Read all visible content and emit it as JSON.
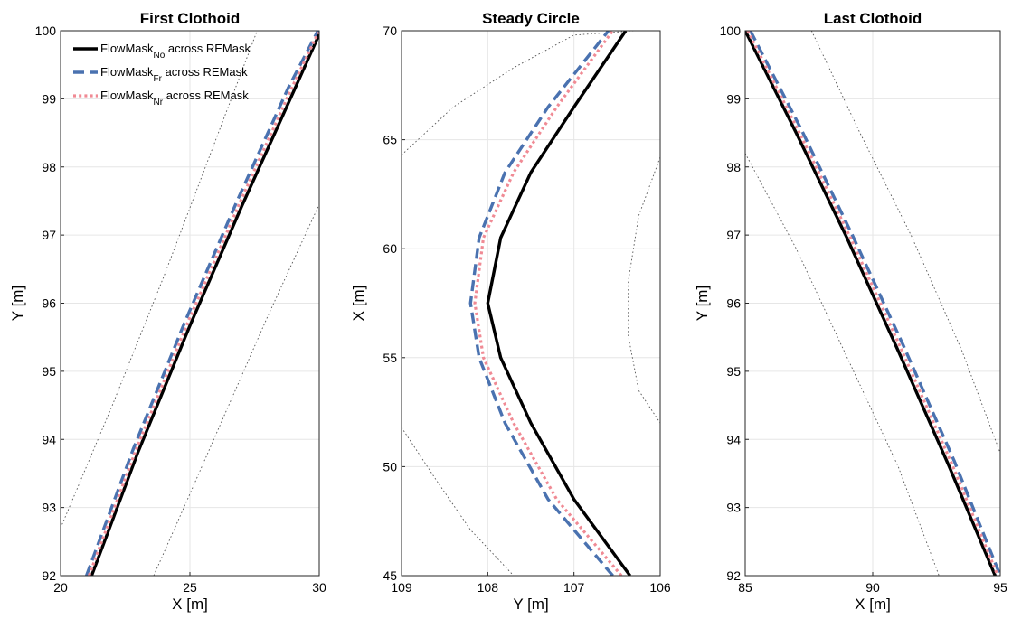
{
  "colors": {
    "flowmask_no": "#000000",
    "flowmask_fr": "#4a72b0",
    "flowmask_nr": "#f08a94",
    "boundary": "#555555",
    "grid": "#e6e6e6"
  },
  "legend": {
    "placement": "top-left",
    "entries": [
      {
        "series": "flowmask_no",
        "main": "FlowMask",
        "sub": "No",
        "suffix": " across REMask"
      },
      {
        "series": "flowmask_fr",
        "main": "FlowMask",
        "sub": "Fr",
        "suffix": " across REMask"
      },
      {
        "series": "flowmask_nr",
        "main": "FlowMask",
        "sub": "Nr",
        "suffix": " across REMask"
      }
    ]
  },
  "chart_data": [
    {
      "type": "line",
      "title": "First Clothoid",
      "xlabel": "X [m]",
      "ylabel": "Y [m]",
      "xlim": [
        20,
        30
      ],
      "ylim": [
        92,
        100
      ],
      "x_reversed": false,
      "xticks": [
        20,
        25,
        30
      ],
      "xtick_labels": [
        "20",
        "25",
        "30"
      ],
      "yticks": [
        92,
        93,
        94,
        95,
        96,
        97,
        98,
        99,
        100
      ],
      "ytick_labels": [
        "92",
        "93",
        "94",
        "95",
        "96",
        "97",
        "98",
        "99",
        "100"
      ],
      "grid": true,
      "series": [
        {
          "key": "flowmask_no",
          "style": "solid",
          "x": [
            21.2,
            23.0,
            25.0,
            27.0,
            29.0,
            30.0
          ],
          "y": [
            92.0,
            93.82,
            95.67,
            97.42,
            99.1,
            99.95
          ]
        },
        {
          "key": "flowmask_fr",
          "style": "dashed",
          "x": [
            21.0,
            22.8,
            24.8,
            26.8,
            28.8,
            29.95
          ],
          "y": [
            92.0,
            93.85,
            95.72,
            97.48,
            99.16,
            100.0
          ]
        },
        {
          "key": "flowmask_nr",
          "style": "dotted",
          "x": [
            21.1,
            22.9,
            24.9,
            26.9,
            28.9,
            29.97
          ],
          "y": [
            92.0,
            93.83,
            95.7,
            97.45,
            99.13,
            99.98
          ]
        },
        {
          "key": "boundary",
          "style": "boundary",
          "x": [
            20.0,
            22.0,
            24.0,
            26.0,
            27.6
          ],
          "y": [
            92.7,
            94.5,
            96.4,
            98.4,
            100.0
          ]
        },
        {
          "key": "boundary",
          "style": "boundary",
          "x": [
            23.6,
            25.0,
            26.5,
            28.0,
            30.0
          ],
          "y": [
            92.0,
            93.2,
            94.5,
            95.8,
            97.45
          ]
        }
      ]
    },
    {
      "type": "line",
      "title": "Steady Circle",
      "xlabel": "Y [m]",
      "ylabel": "X [m]",
      "xlim": [
        109,
        106
      ],
      "ylim": [
        45,
        70
      ],
      "x_reversed": true,
      "xticks": [
        109,
        108,
        107,
        106
      ],
      "xtick_labels": [
        "109",
        "108",
        "107",
        "106"
      ],
      "yticks": [
        45,
        50,
        55,
        60,
        65,
        70
      ],
      "ytick_labels": [
        "45",
        "50",
        "55",
        "60",
        "65",
        "70"
      ],
      "grid": true,
      "series": [
        {
          "key": "flowmask_no",
          "style": "solid",
          "x": [
            106.35,
            107.0,
            107.5,
            107.85,
            108.0,
            107.85,
            107.5,
            107.0,
            106.4
          ],
          "y": [
            45.0,
            48.5,
            52.0,
            55.0,
            57.5,
            60.5,
            63.5,
            66.5,
            70.0
          ]
        },
        {
          "key": "flowmask_fr",
          "style": "dashed",
          "x": [
            106.55,
            107.3,
            107.8,
            108.1,
            108.2,
            108.1,
            107.8,
            107.3,
            106.6
          ],
          "y": [
            45.0,
            48.5,
            52.0,
            55.0,
            57.5,
            60.5,
            63.5,
            66.5,
            70.0
          ]
        },
        {
          "key": "flowmask_nr",
          "style": "dotted",
          "x": [
            106.45,
            107.2,
            107.7,
            108.05,
            108.15,
            108.05,
            107.7,
            107.2,
            106.55
          ],
          "y": [
            45.0,
            48.5,
            52.0,
            55.0,
            57.5,
            60.5,
            63.5,
            66.5,
            70.0
          ]
        },
        {
          "key": "boundary",
          "style": "boundary",
          "x": [
            109.0,
            108.4,
            107.7,
            107.0,
            106.3
          ],
          "y": [
            64.3,
            66.5,
            68.3,
            69.8,
            70.0
          ]
        },
        {
          "key": "boundary",
          "style": "boundary",
          "x": [
            109.0,
            108.6,
            108.2,
            107.7
          ],
          "y": [
            51.8,
            49.4,
            47.1,
            45.0
          ]
        },
        {
          "key": "boundary",
          "style": "boundary",
          "x": [
            106.0,
            106.25,
            106.37,
            106.37,
            106.25,
            106.0
          ],
          "y": [
            64.2,
            61.5,
            58.5,
            56.0,
            53.5,
            52.0
          ]
        }
      ]
    },
    {
      "type": "line",
      "title": "Last Clothoid",
      "xlabel": "X [m]",
      "ylabel": "Y [m]",
      "xlim": [
        85,
        95
      ],
      "ylim": [
        92,
        100
      ],
      "x_reversed": false,
      "xticks": [
        85,
        90,
        95
      ],
      "xtick_labels": [
        "85",
        "90",
        "95"
      ],
      "yticks": [
        92,
        93,
        94,
        95,
        96,
        97,
        98,
        99,
        100
      ],
      "ytick_labels": [
        "92",
        "93",
        "94",
        "95",
        "96",
        "97",
        "98",
        "99",
        "100"
      ],
      "grid": true,
      "series": [
        {
          "key": "flowmask_no",
          "style": "solid",
          "x": [
            85.0,
            87.0,
            89.0,
            91.0,
            93.0,
            94.8
          ],
          "y": [
            100.0,
            98.5,
            96.95,
            95.3,
            93.6,
            92.0
          ]
        },
        {
          "key": "flowmask_fr",
          "style": "dashed",
          "x": [
            85.2,
            87.2,
            89.2,
            91.2,
            93.2,
            95.0
          ],
          "y": [
            100.0,
            98.55,
            97.0,
            95.38,
            93.68,
            92.0
          ]
        },
        {
          "key": "flowmask_nr",
          "style": "dotted",
          "x": [
            85.1,
            87.1,
            89.1,
            91.1,
            93.1,
            94.9
          ],
          "y": [
            100.0,
            98.52,
            96.98,
            95.34,
            93.64,
            92.0
          ]
        },
        {
          "key": "boundary",
          "style": "boundary",
          "x": [
            87.6,
            89.5,
            91.5,
            93.5,
            95.0
          ],
          "y": [
            100.0,
            98.5,
            97.0,
            95.3,
            93.8
          ]
        },
        {
          "key": "boundary",
          "style": "boundary",
          "x": [
            85.0,
            87.0,
            89.0,
            91.0,
            92.6
          ],
          "y": [
            98.2,
            96.8,
            95.2,
            93.6,
            92.0
          ]
        }
      ]
    }
  ]
}
